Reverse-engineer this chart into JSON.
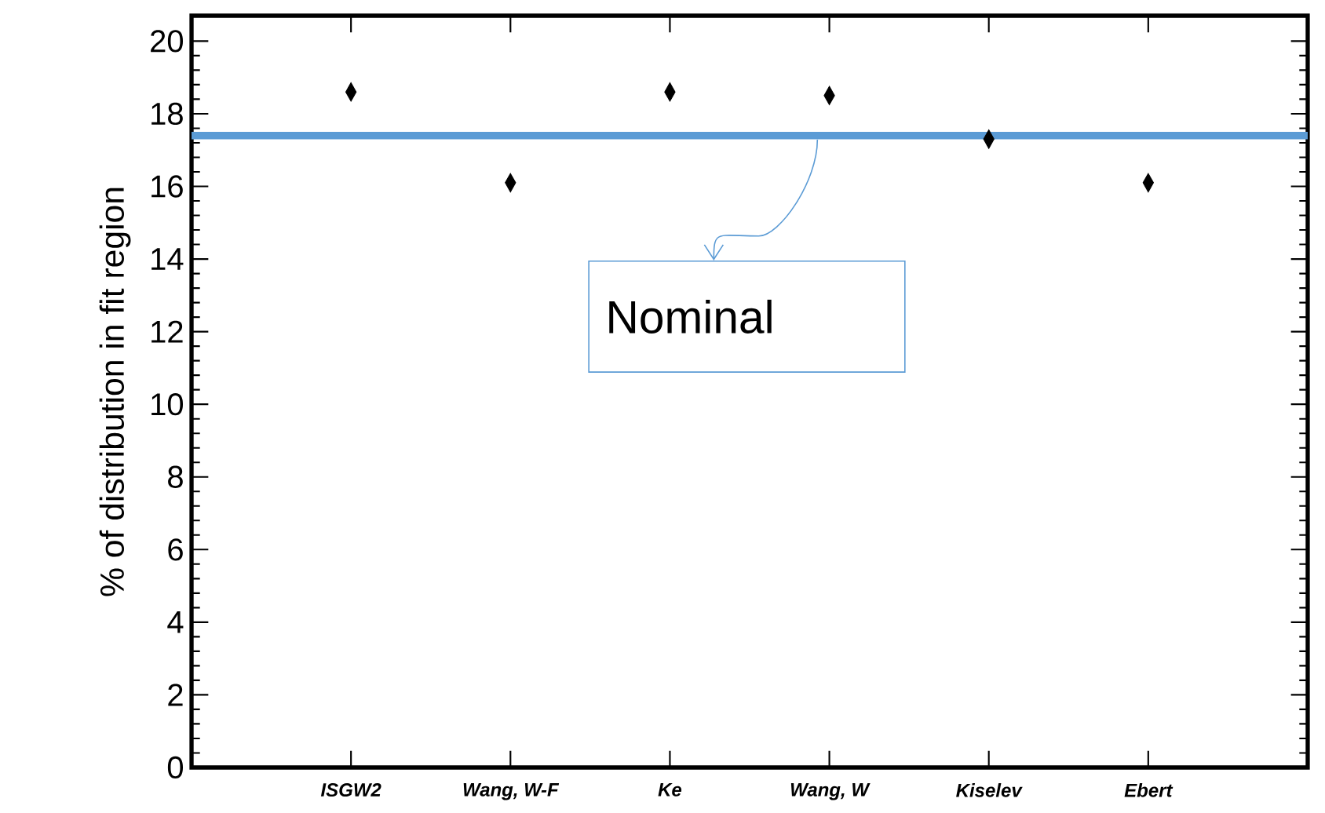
{
  "chart_data": {
    "type": "scatter",
    "ylabel": "% of distribution in fit region",
    "categories": [
      "ISGW2",
      "Wang, W-F",
      "Ke",
      "Wang, W",
      "Kiselev",
      "Ebert"
    ],
    "series": [
      {
        "color": "#000000",
        "values": [
          18.6,
          16.1,
          18.6,
          18.5,
          17.3,
          16.1
        ]
      }
    ],
    "marker": "diamond",
    "ylim": [
      0,
      20.7
    ],
    "yticks": [
      0,
      2,
      4,
      6,
      8,
      10,
      12,
      14,
      16,
      18,
      20
    ],
    "ref_lines": [
      {
        "axis": "y",
        "value": 17.4,
        "label": "Nominal",
        "color": "#5b9bd5"
      }
    ]
  }
}
